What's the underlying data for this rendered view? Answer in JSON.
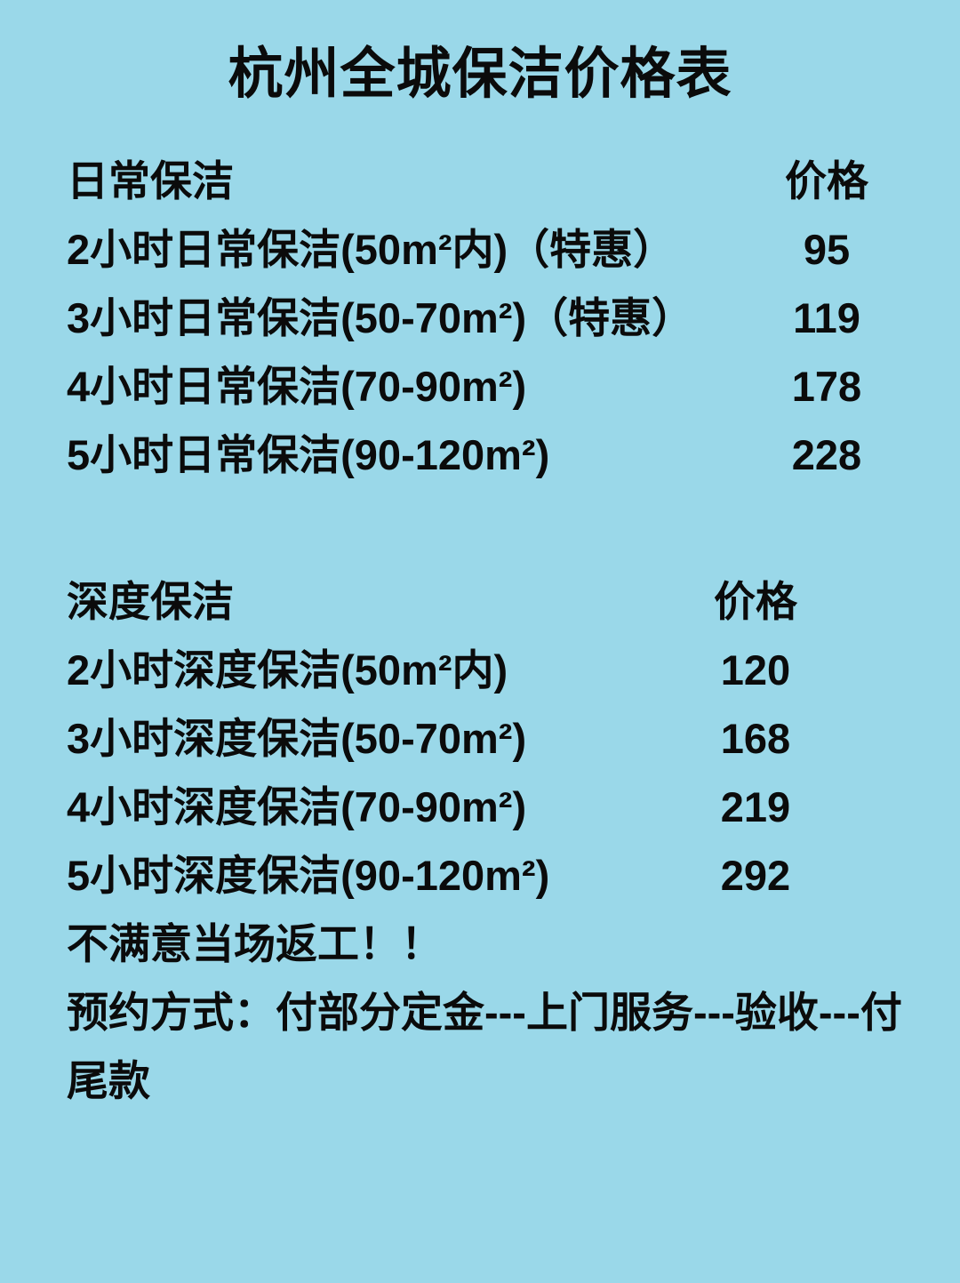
{
  "colors": {
    "background": "#9AD8E9",
    "text": "#0B0B0B"
  },
  "title": "杭州全城保洁价格表",
  "sections": [
    {
      "name": "日常保洁",
      "price_header": "价格",
      "rows": [
        {
          "label": "2小时日常保洁(50m²内)（特惠）",
          "price": "95"
        },
        {
          "label": "3小时日常保洁(50-70m²)（特惠）",
          "price": "119"
        },
        {
          "label": "4小时日常保洁(70-90m²)",
          "price": "178"
        },
        {
          "label": "5小时日常保洁(90-120m²)",
          "price": "228"
        }
      ]
    },
    {
      "name": "深度保洁",
      "price_header": "价格",
      "rows": [
        {
          "label": "2小时深度保洁(50m²内)",
          "price": "120"
        },
        {
          "label": "3小时深度保洁(50-70m²)",
          "price": "168"
        },
        {
          "label": "4小时深度保洁(70-90m²)",
          "price": "219"
        },
        {
          "label": "5小时深度保洁(90-120m²)",
          "price": "292"
        }
      ]
    }
  ],
  "notes": {
    "rework": "不满意当场返工！！",
    "booking_line1": "预约方式：付部分定金---上门服务---验收---付",
    "booking_line2": "尾款"
  }
}
